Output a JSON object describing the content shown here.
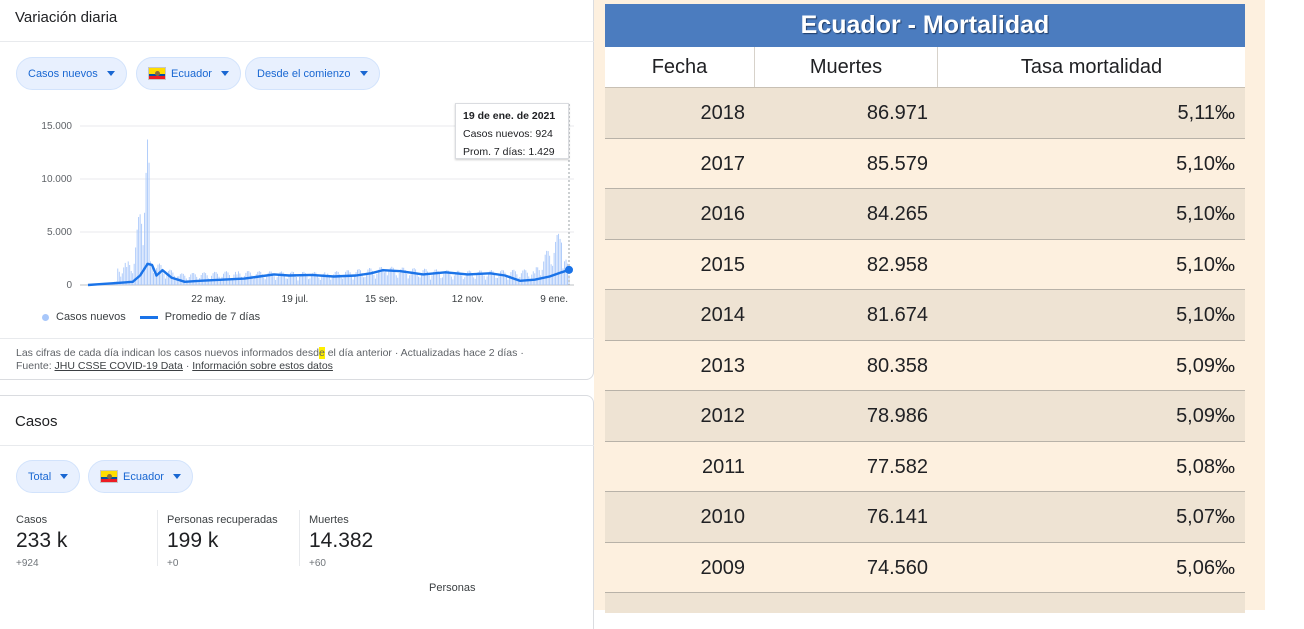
{
  "daily": {
    "title": "Variación diaria",
    "filters": [
      "Casos nuevos",
      "Ecuador",
      "Desde el comienzo"
    ],
    "tooltip": {
      "date": "19 de ene. de 2021",
      "new_cases": "Casos nuevos: 924",
      "avg": "Prom. 7 días: 1.429"
    },
    "legend": {
      "bars": "Casos nuevos",
      "line": "Promedio de 7 días"
    },
    "note_part1": "Las cifras de cada día indican los casos nuevos informados desd",
    "note_mark": "e",
    "note_part2": " el día anterior · Actualizadas hace 2 días  ·",
    "source_label": "Fuente:",
    "source_link": "JHU CSSE COVID-19 Data",
    "info_link": "Información sobre estos datos"
  },
  "chart_data": {
    "type": "bar",
    "title": "",
    "ylim": [
      0,
      15000
    ],
    "yticks": [
      0,
      5000,
      10000,
      15000
    ],
    "ytick_labels": [
      "0",
      "5.000",
      "10.000",
      "15.000"
    ],
    "xtick_labels": [
      "22 may.",
      "19 jul.",
      "15 sep.",
      "12 nov.",
      "9 ene."
    ],
    "xtick_days": [
      81,
      139,
      197,
      255,
      313
    ],
    "days_total": 323,
    "grid": true,
    "series": [
      {
        "name": "Casos nuevos",
        "sample": [
          [
            0,
            20
          ],
          [
            26,
            1700
          ],
          [
            31,
            2000
          ],
          [
            41,
            11536
          ],
          [
            43,
            1800
          ],
          [
            60,
            800
          ],
          [
            100,
            1000
          ],
          [
            160,
            900
          ],
          [
            200,
            1300
          ],
          [
            250,
            1000
          ],
          [
            300,
            1100
          ],
          [
            318,
            4000
          ],
          [
            323,
            924
          ]
        ]
      },
      {
        "name": "Promedio de 7 días",
        "points": [
          [
            0,
            0
          ],
          [
            10,
            100
          ],
          [
            20,
            200
          ],
          [
            30,
            300
          ],
          [
            35,
            900
          ],
          [
            40,
            2000
          ],
          [
            43,
            1900
          ],
          [
            46,
            900
          ],
          [
            50,
            1400
          ],
          [
            56,
            700
          ],
          [
            65,
            300
          ],
          [
            75,
            400
          ],
          [
            90,
            500
          ],
          [
            105,
            600
          ],
          [
            115,
            800
          ],
          [
            125,
            1000
          ],
          [
            135,
            900
          ],
          [
            150,
            950
          ],
          [
            165,
            800
          ],
          [
            180,
            900
          ],
          [
            190,
            1100
          ],
          [
            198,
            1400
          ],
          [
            210,
            1300
          ],
          [
            225,
            1000
          ],
          [
            240,
            1200
          ],
          [
            255,
            1000
          ],
          [
            270,
            1100
          ],
          [
            280,
            900
          ],
          [
            290,
            400
          ],
          [
            300,
            500
          ],
          [
            310,
            800
          ],
          [
            318,
            1200
          ],
          [
            323,
            1429
          ]
        ]
      }
    ]
  },
  "totals": {
    "title": "Casos",
    "filters": [
      "Total",
      "Ecuador"
    ],
    "stats": [
      {
        "label": "Casos",
        "value": "233 k",
        "delta": "+924"
      },
      {
        "label": "Personas recuperadas",
        "value": "199 k",
        "delta": "+0"
      },
      {
        "label": "Muertes",
        "value": "14.382",
        "delta": "+60"
      }
    ],
    "cut_text": "Personas"
  },
  "mortality": {
    "title": "Ecuador - Mortalidad",
    "headers": [
      "Fecha",
      "Muertes",
      "Tasa mortalidad"
    ],
    "rows": [
      [
        "2018",
        "86.971",
        "5,11‰"
      ],
      [
        "2017",
        "85.579",
        "5,10‰"
      ],
      [
        "2016",
        "84.265",
        "5,10‰"
      ],
      [
        "2015",
        "82.958",
        "5,10‰"
      ],
      [
        "2014",
        "81.674",
        "5,10‰"
      ],
      [
        "2013",
        "80.358",
        "5,09‰"
      ],
      [
        "2012",
        "78.986",
        "5,09‰"
      ],
      [
        "2011",
        "77.582",
        "5,08‰"
      ],
      [
        "2010",
        "76.141",
        "5,07‰"
      ],
      [
        "2009",
        "74.560",
        "5,06‰"
      ]
    ]
  }
}
